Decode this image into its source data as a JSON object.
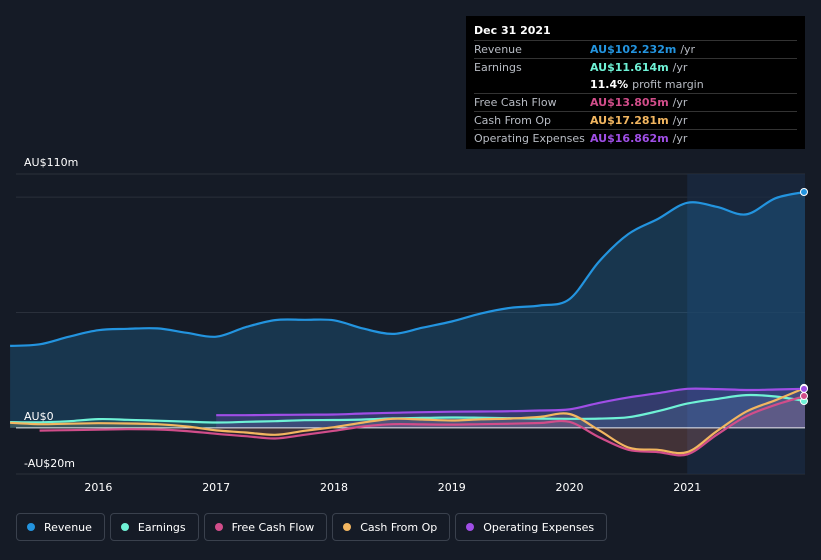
{
  "tooltip": {
    "date": "Dec 31 2021",
    "rows": [
      {
        "label": "Revenue",
        "value": "AU$102.232m",
        "unit": "/yr",
        "color": "#2394df"
      },
      {
        "label": "Earnings",
        "value": "AU$11.614m",
        "unit": "/yr",
        "color": "#6ff2d6"
      },
      {
        "label": "",
        "value": "11.4%",
        "unit": "profit margin",
        "color": "#ffffff"
      },
      {
        "label": "Free Cash Flow",
        "value": "AU$13.805m",
        "unit": "/yr",
        "color": "#d14d8a"
      },
      {
        "label": "Cash From Op",
        "value": "AU$17.281m",
        "unit": "/yr",
        "color": "#f2b660"
      },
      {
        "label": "Operating Expenses",
        "value": "AU$16.862m",
        "unit": "/yr",
        "color": "#9f4ee6"
      }
    ]
  },
  "legend": [
    {
      "label": "Revenue",
      "color": "#2394df"
    },
    {
      "label": "Earnings",
      "color": "#6ff2d6"
    },
    {
      "label": "Free Cash Flow",
      "color": "#d14d8a"
    },
    {
      "label": "Cash From Op",
      "color": "#f2b660"
    },
    {
      "label": "Operating Expenses",
      "color": "#9f4ee6"
    }
  ],
  "chart_data": {
    "type": "line",
    "y_axis_labels": [
      "AU$110m",
      "AU$0",
      "-AU$20m"
    ],
    "x_ticks": [
      "2016",
      "2017",
      "2018",
      "2019",
      "2020",
      "2021"
    ],
    "x_tick_values": [
      2016,
      2017,
      2018,
      2019,
      2020,
      2021
    ],
    "xlim": [
      2015.3,
      2022.0
    ],
    "ylim": [
      -20,
      110
    ],
    "grid": true,
    "legend_position": "bottom",
    "highlight_from": 2021.0,
    "series": [
      {
        "name": "Revenue",
        "color": "#2394df",
        "fill": true,
        "x": [
          2015.25,
          2015.5,
          2015.75,
          2016.0,
          2016.25,
          2016.5,
          2016.75,
          2017.0,
          2017.25,
          2017.5,
          2017.75,
          2018.0,
          2018.25,
          2018.5,
          2018.75,
          2019.0,
          2019.25,
          2019.5,
          2019.75,
          2020.0,
          2020.25,
          2020.5,
          2020.75,
          2021.0,
          2021.25,
          2021.5,
          2021.75,
          2022.0
        ],
        "y": [
          35.5,
          36.2,
          39.5,
          42.3,
          42.9,
          43.1,
          41.2,
          39.5,
          43.6,
          46.7,
          46.8,
          46.6,
          43.0,
          40.7,
          43.4,
          46.1,
          49.6,
          52.0,
          53.0,
          55.8,
          72.0,
          84.0,
          90.5,
          97.5,
          95.8,
          92.5,
          99.5,
          102.2
        ]
      },
      {
        "name": "Earnings",
        "color": "#6ff2d6",
        "fill": false,
        "x": [
          2015.25,
          2015.5,
          2015.75,
          2016.0,
          2016.25,
          2016.5,
          2016.75,
          2017.0,
          2017.25,
          2017.5,
          2017.75,
          2018.0,
          2018.25,
          2018.5,
          2018.75,
          2019.0,
          2019.25,
          2019.5,
          2019.75,
          2020.0,
          2020.25,
          2020.5,
          2020.75,
          2021.0,
          2021.25,
          2021.5,
          2021.75,
          2022.0
        ],
        "y": [
          2.5,
          2.4,
          2.9,
          3.8,
          3.5,
          3.1,
          2.7,
          2.3,
          2.6,
          2.9,
          3.3,
          3.4,
          3.6,
          4.1,
          4.3,
          4.5,
          4.4,
          4.2,
          4.0,
          3.9,
          4.0,
          4.6,
          7.2,
          10.5,
          12.5,
          14.2,
          13.6,
          11.6
        ]
      },
      {
        "name": "Free Cash Flow",
        "color": "#d14d8a",
        "fill": false,
        "x": [
          2015.5,
          2015.75,
          2016.0,
          2016.25,
          2016.5,
          2016.75,
          2017.0,
          2017.25,
          2017.5,
          2017.75,
          2018.0,
          2018.25,
          2018.5,
          2018.75,
          2019.0,
          2019.25,
          2019.5,
          2019.75,
          2020.0,
          2020.25,
          2020.5,
          2020.75,
          2021.0,
          2021.25,
          2021.5,
          2021.75,
          2022.0
        ],
        "y": [
          -1.2,
          -1.0,
          -0.8,
          -0.6,
          -0.7,
          -1.4,
          -2.6,
          -3.6,
          -4.6,
          -3.0,
          -1.3,
          0.6,
          1.6,
          1.5,
          1.4,
          1.6,
          1.8,
          2.1,
          2.6,
          -4.0,
          -9.5,
          -10.5,
          -11.5,
          -3.0,
          5.0,
          10.0,
          13.8
        ]
      },
      {
        "name": "Cash From Op",
        "color": "#f2b660",
        "fill": false,
        "x": [
          2015.25,
          2015.5,
          2015.75,
          2016.0,
          2016.25,
          2016.5,
          2016.75,
          2017.0,
          2017.25,
          2017.5,
          2017.75,
          2018.0,
          2018.25,
          2018.5,
          2018.75,
          2019.0,
          2019.25,
          2019.5,
          2019.75,
          2020.0,
          2020.25,
          2020.5,
          2020.75,
          2021.0,
          2021.25,
          2021.5,
          2021.75,
          2022.0
        ],
        "y": [
          2.2,
          1.6,
          1.8,
          2.0,
          1.9,
          1.6,
          0.6,
          -1.1,
          -2.0,
          -3.0,
          -1.3,
          0.3,
          2.3,
          3.9,
          3.6,
          3.2,
          3.7,
          4.0,
          4.8,
          6.0,
          -1.0,
          -8.5,
          -9.5,
          -10.5,
          -1.5,
          7.0,
          12.0,
          17.3
        ]
      },
      {
        "name": "Operating Expenses",
        "color": "#9f4ee6",
        "fill": true,
        "x": [
          2017.0,
          2017.25,
          2017.5,
          2017.75,
          2018.0,
          2018.25,
          2018.5,
          2018.75,
          2019.0,
          2019.25,
          2019.5,
          2019.75,
          2020.0,
          2020.25,
          2020.5,
          2020.75,
          2021.0,
          2021.25,
          2021.5,
          2021.75,
          2022.0
        ],
        "y": [
          5.5,
          5.5,
          5.6,
          5.7,
          5.8,
          6.2,
          6.5,
          6.8,
          7.0,
          7.1,
          7.2,
          7.5,
          8.0,
          10.8,
          13.2,
          15.0,
          16.9,
          16.8,
          16.4,
          16.6,
          16.9
        ]
      }
    ]
  }
}
